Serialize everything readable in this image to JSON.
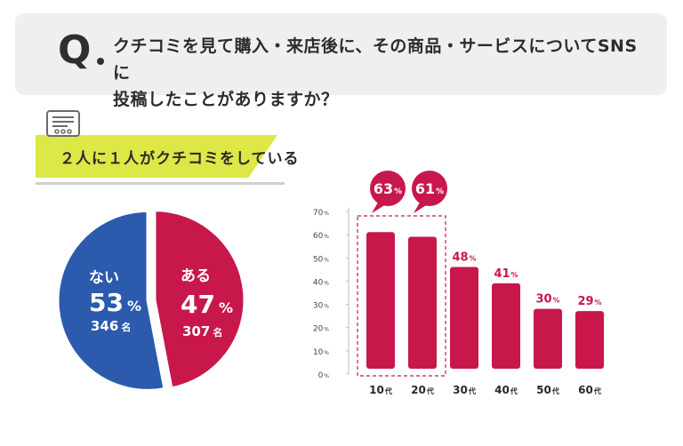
{
  "question": {
    "mark": "Q",
    "text_line1": "クチコミを見て購入・来店後に、その商品・サービスについてSNSに",
    "text_line2": "投稿したことがありますか？"
  },
  "banner": {
    "text": "２人に１人がクチコミをしている"
  },
  "colors": {
    "red": "#c8174b",
    "blue": "#2c5aad",
    "green": "#dde746",
    "qbox": "#efefef"
  },
  "chart_data": [
    {
      "type": "pie",
      "slices": [
        {
          "label": "ある",
          "percent": 47,
          "count": 307,
          "count_unit": "名",
          "color": "#c8174b"
        },
        {
          "label": "ない",
          "percent": 53,
          "count": 346,
          "count_unit": "名",
          "color": "#2c5aad"
        }
      ]
    },
    {
      "type": "bar",
      "categories": [
        "10",
        "20",
        "30",
        "40",
        "50",
        "60"
      ],
      "category_suffix": "代",
      "values": [
        63,
        61,
        48,
        41,
        30,
        29
      ],
      "value_suffix": "%",
      "highlighted": [
        "10",
        "20"
      ],
      "ylim": [
        0,
        70
      ],
      "yticks": [
        0,
        10,
        20,
        30,
        40,
        50,
        60,
        70
      ],
      "ytick_suffix": "%",
      "color": "#c8174b"
    }
  ]
}
